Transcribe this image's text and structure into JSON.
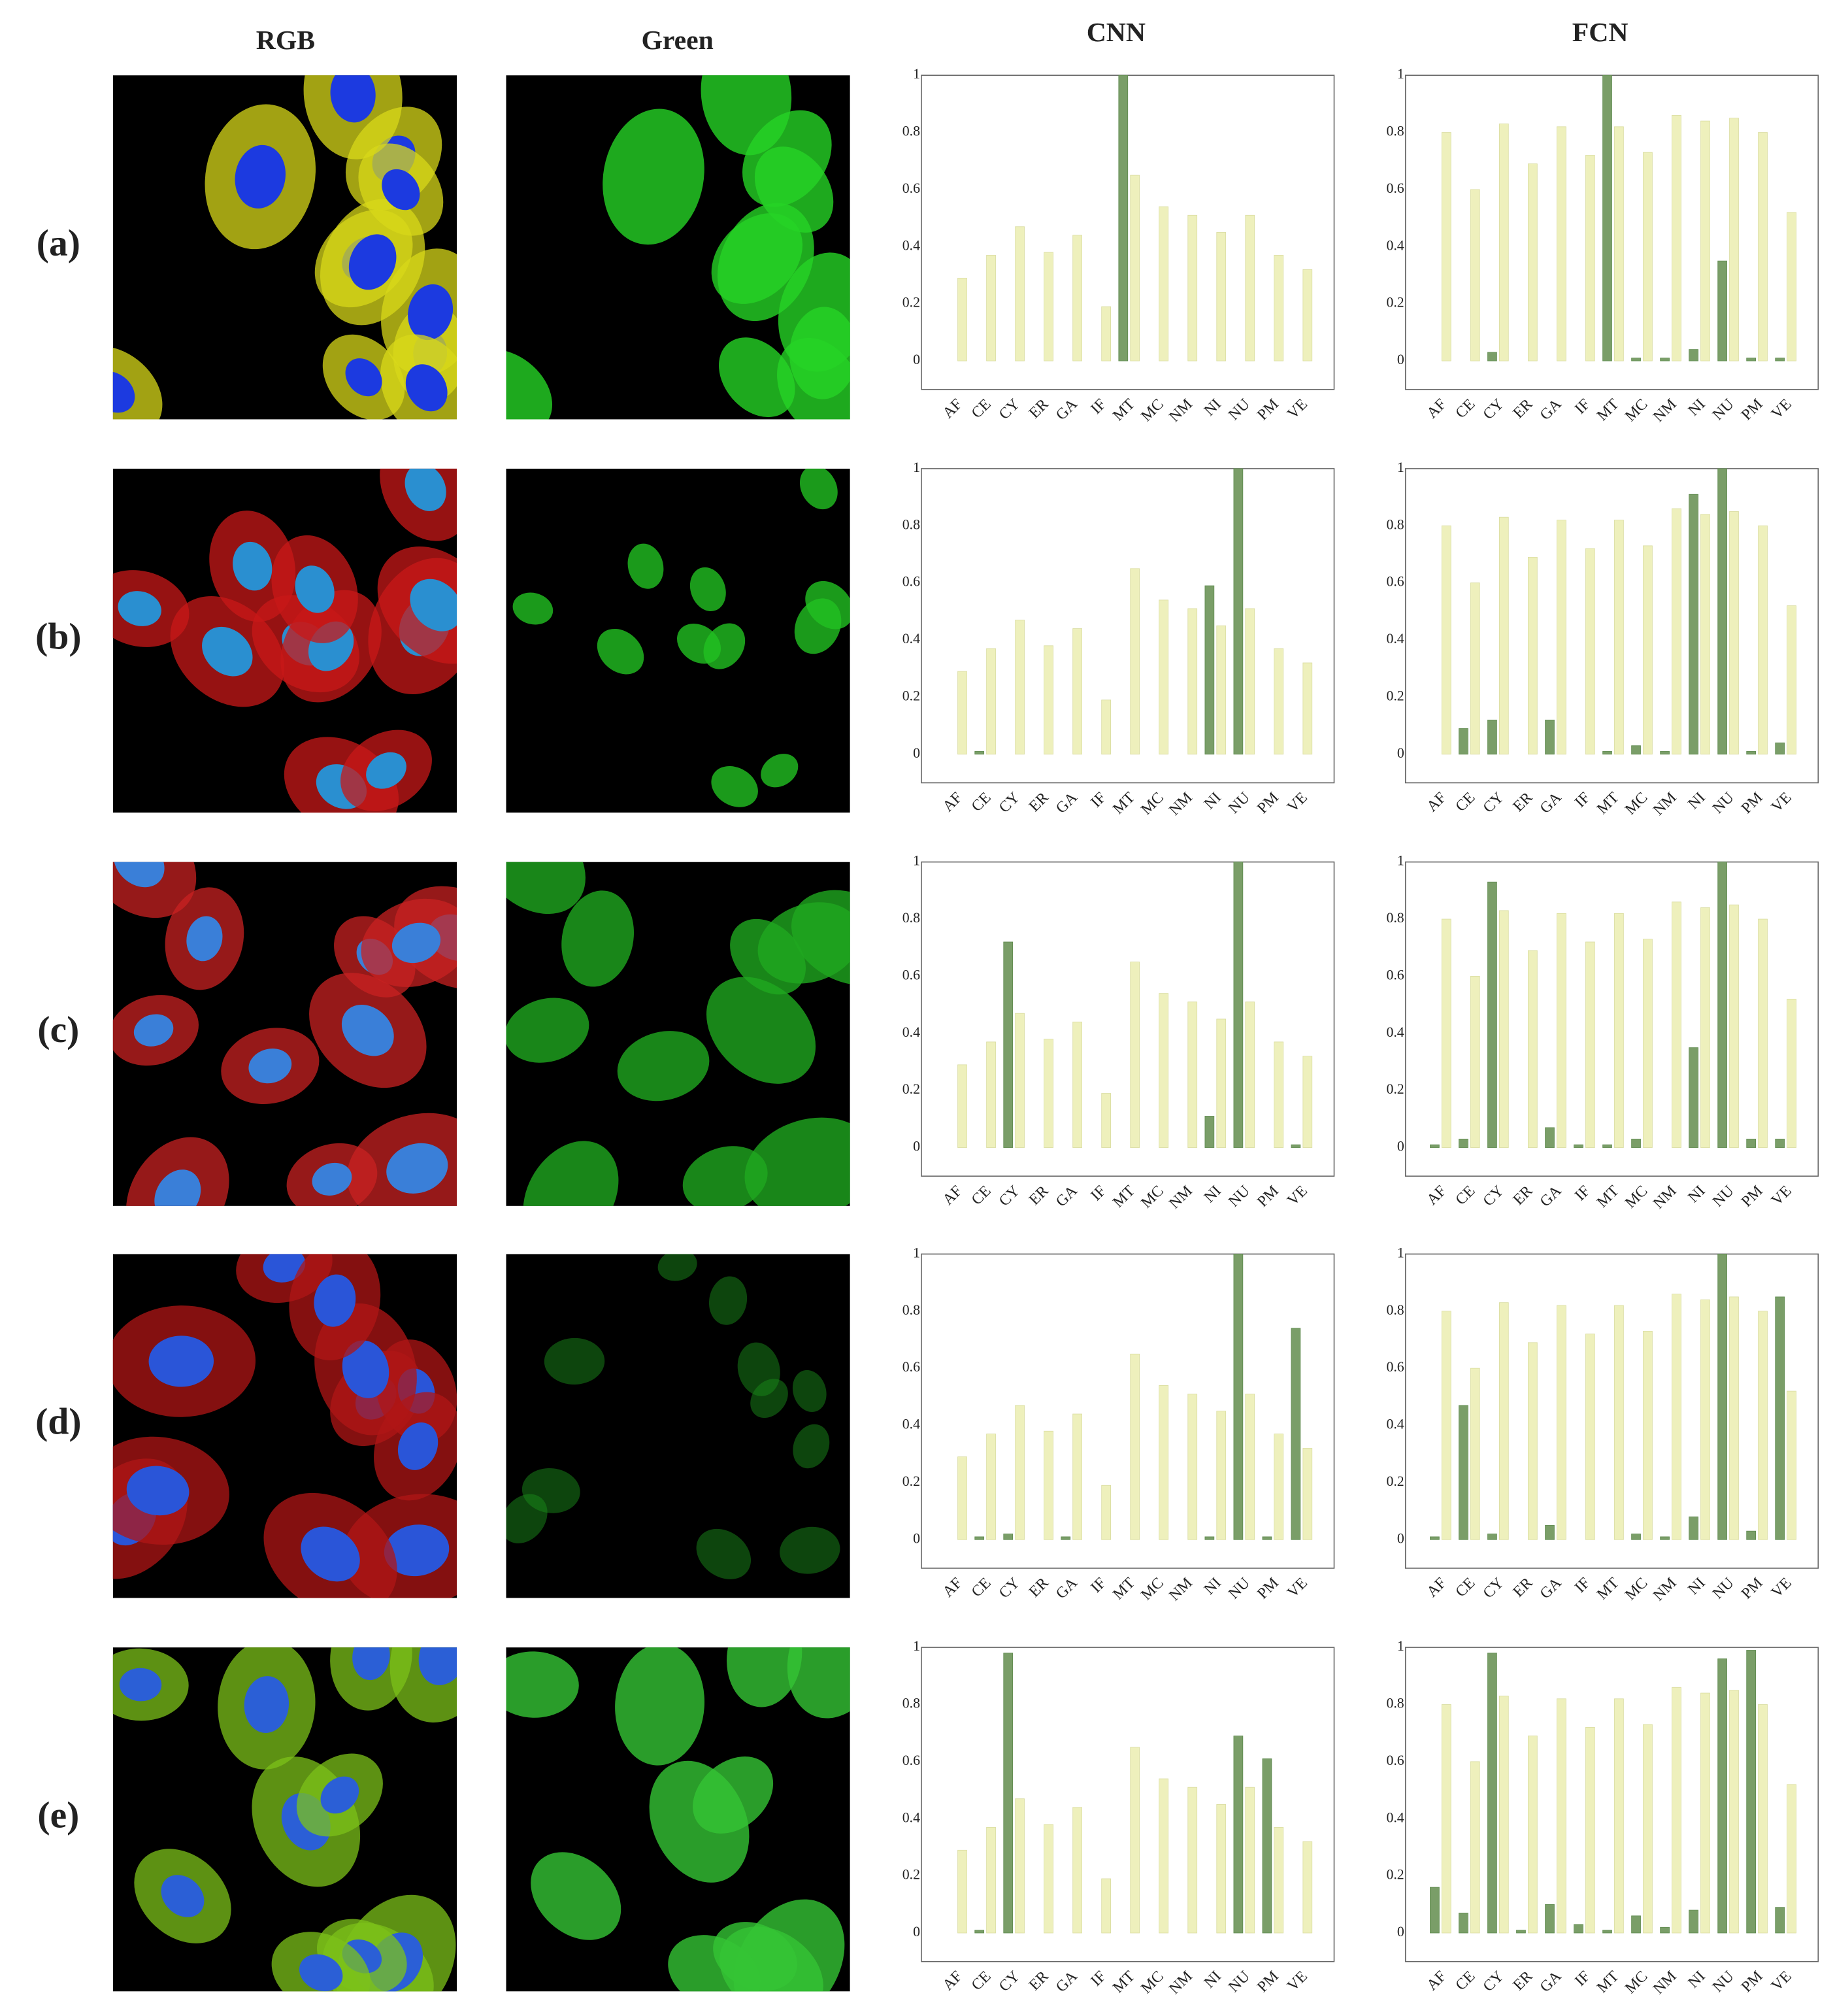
{
  "columns": [
    "RGB",
    "Green",
    "CNN",
    "FCN"
  ],
  "rows": [
    "(a)",
    "(b)",
    "(c)",
    "(d)",
    "(e)"
  ],
  "chart_data": [
    {
      "type": "bar",
      "categories": [
        "AF",
        "CE",
        "CY",
        "ER",
        "GA",
        "IF",
        "MT",
        "MC",
        "NM",
        "NI",
        "NU",
        "PM",
        "VE"
      ],
      "series": [
        {
          "color": "#7a9e68",
          "values": [
            0,
            0,
            0,
            0,
            0,
            0,
            1.0,
            0,
            0,
            0,
            0,
            0,
            0
          ]
        },
        {
          "color": "#eef0bc",
          "values": [
            0.29,
            0.37,
            0.47,
            0.38,
            0.44,
            0.19,
            0.65,
            0.54,
            0.51,
            0.45,
            0.51,
            0.37,
            0.32
          ]
        }
      ],
      "ylim": [
        -0.1,
        1
      ],
      "yticks": [
        0,
        0.2,
        0.4,
        0.6,
        0.8,
        1
      ],
      "grid": false,
      "category_colors": [
        "#333",
        "#333",
        "#333",
        "#333",
        "#333",
        "#333",
        "#2fc42f",
        "#333",
        "#333",
        "#333",
        "#333",
        "#333",
        "#333"
      ]
    },
    {
      "type": "bar",
      "categories": [
        "AF",
        "CE",
        "CY",
        "ER",
        "GA",
        "IF",
        "MT",
        "MC",
        "NM",
        "NI",
        "NU",
        "PM",
        "VE"
      ],
      "series": [
        {
          "color": "#7a9e68",
          "values": [
            0,
            0,
            0.03,
            0,
            0,
            0,
            1.0,
            0.01,
            0.01,
            0.04,
            0.35,
            0.01,
            0.01
          ]
        },
        {
          "color": "#eef0bc",
          "values": [
            0.8,
            0.6,
            0.83,
            0.69,
            0.82,
            0.72,
            0.82,
            0.73,
            0.86,
            0.84,
            0.85,
            0.8,
            0.52
          ]
        }
      ],
      "ylim": [
        -0.1,
        1
      ],
      "yticks": [
        0,
        0.2,
        0.4,
        0.6,
        0.8,
        1
      ],
      "grid": false,
      "category_colors": [
        "#333",
        "#333",
        "#333",
        "#333",
        "#333",
        "#333",
        "#2fc42f",
        "#333",
        "#333",
        "#333",
        "#333",
        "#333",
        "#333"
      ]
    },
    {
      "type": "bar",
      "categories": [
        "AF",
        "CE",
        "CY",
        "ER",
        "GA",
        "IF",
        "MT",
        "MC",
        "NM",
        "NI",
        "NU",
        "PM",
        "VE"
      ],
      "series": [
        {
          "color": "#7a9e68",
          "values": [
            0,
            0.01,
            0,
            0,
            0,
            0,
            0,
            0,
            0,
            0.59,
            1.0,
            0,
            0
          ]
        },
        {
          "color": "#eef0bc",
          "values": [
            0.29,
            0.37,
            0.47,
            0.38,
            0.44,
            0.19,
            0.65,
            0.54,
            0.51,
            0.45,
            0.51,
            0.37,
            0.32
          ]
        }
      ],
      "ylim": [
        -0.1,
        1
      ],
      "yticks": [
        0,
        0.2,
        0.4,
        0.6,
        0.8,
        1
      ],
      "grid": false,
      "category_colors": [
        "#333",
        "#333",
        "#333",
        "#333",
        "#333",
        "#333",
        "#333",
        "#333",
        "#333",
        "#2fc42f",
        "#2fc42f",
        "#333",
        "#333"
      ]
    },
    {
      "type": "bar",
      "categories": [
        "AF",
        "CE",
        "CY",
        "ER",
        "GA",
        "IF",
        "MT",
        "MC",
        "NM",
        "NI",
        "NU",
        "PM",
        "VE"
      ],
      "series": [
        {
          "color": "#7a9e68",
          "values": [
            0,
            0.09,
            0.12,
            0,
            0.12,
            0,
            0.01,
            0.03,
            0.01,
            0.91,
            1.0,
            0.01,
            0.04
          ]
        },
        {
          "color": "#eef0bc",
          "values": [
            0.8,
            0.6,
            0.83,
            0.69,
            0.82,
            0.72,
            0.82,
            0.73,
            0.86,
            0.84,
            0.85,
            0.8,
            0.52
          ]
        }
      ],
      "ylim": [
        -0.1,
        1
      ],
      "yticks": [
        0,
        0.2,
        0.4,
        0.6,
        0.8,
        1
      ],
      "grid": false,
      "category_colors": [
        "#333",
        "#333",
        "#333",
        "#333",
        "#333",
        "#333",
        "#333",
        "#333",
        "#333",
        "#2fc42f",
        "#2fc42f",
        "#333",
        "#333"
      ]
    },
    {
      "type": "bar",
      "categories": [
        "AF",
        "CE",
        "CY",
        "ER",
        "GA",
        "IF",
        "MT",
        "MC",
        "NM",
        "NI",
        "NU",
        "PM",
        "VE"
      ],
      "series": [
        {
          "color": "#7a9e68",
          "values": [
            0,
            0,
            0.72,
            0,
            0,
            0,
            0,
            0,
            0,
            0.11,
            1.0,
            0,
            0.01
          ]
        },
        {
          "color": "#eef0bc",
          "values": [
            0.29,
            0.37,
            0.47,
            0.38,
            0.44,
            0.19,
            0.65,
            0.54,
            0.51,
            0.45,
            0.51,
            0.37,
            0.32
          ]
        }
      ],
      "ylim": [
        -0.1,
        1
      ],
      "yticks": [
        0,
        0.2,
        0.4,
        0.6,
        0.8,
        1
      ],
      "grid": false,
      "category_colors": [
        "#333",
        "#333",
        "#2fc42f",
        "#333",
        "#333",
        "#333",
        "#333",
        "#333",
        "#333",
        "#333",
        "#2fc42f",
        "#333",
        "#333"
      ]
    },
    {
      "type": "bar",
      "categories": [
        "AF",
        "CE",
        "CY",
        "ER",
        "GA",
        "IF",
        "MT",
        "MC",
        "NM",
        "NI",
        "NU",
        "PM",
        "VE"
      ],
      "series": [
        {
          "color": "#7a9e68",
          "values": [
            0.01,
            0.03,
            0.93,
            0,
            0.07,
            0.01,
            0.01,
            0.03,
            0,
            0.35,
            1.0,
            0.03,
            0.03
          ]
        },
        {
          "color": "#eef0bc",
          "values": [
            0.8,
            0.6,
            0.83,
            0.69,
            0.82,
            0.72,
            0.82,
            0.73,
            0.86,
            0.84,
            0.85,
            0.8,
            0.52
          ]
        }
      ],
      "ylim": [
        -0.1,
        1
      ],
      "yticks": [
        0,
        0.2,
        0.4,
        0.6,
        0.8,
        1
      ],
      "grid": false,
      "category_colors": [
        "#333",
        "#333",
        "#2fc42f",
        "#333",
        "#333",
        "#333",
        "#333",
        "#333",
        "#333",
        "#333",
        "#2fc42f",
        "#333",
        "#333"
      ]
    },
    {
      "type": "bar",
      "categories": [
        "AF",
        "CE",
        "CY",
        "ER",
        "GA",
        "IF",
        "MT",
        "MC",
        "NM",
        "NI",
        "NU",
        "PM",
        "VE"
      ],
      "series": [
        {
          "color": "#7a9e68",
          "values": [
            0,
            0.01,
            0.02,
            0,
            0.01,
            0,
            0,
            0,
            0,
            0.01,
            1.0,
            0.01,
            0.74
          ]
        },
        {
          "color": "#eef0bc",
          "values": [
            0.29,
            0.37,
            0.47,
            0.38,
            0.44,
            0.19,
            0.65,
            0.54,
            0.51,
            0.45,
            0.51,
            0.37,
            0.32
          ]
        }
      ],
      "ylim": [
        -0.1,
        1
      ],
      "yticks": [
        0,
        0.2,
        0.4,
        0.6,
        0.8,
        1
      ],
      "grid": false,
      "category_colors": [
        "#333",
        "#333",
        "#333",
        "#333",
        "#333",
        "#333",
        "#333",
        "#333",
        "#333",
        "#333",
        "#2fc42f",
        "#333",
        "#2fc42f"
      ]
    },
    {
      "type": "bar",
      "categories": [
        "AF",
        "CE",
        "CY",
        "ER",
        "GA",
        "IF",
        "MT",
        "MC",
        "NM",
        "NI",
        "NU",
        "PM",
        "VE"
      ],
      "series": [
        {
          "color": "#7a9e68",
          "values": [
            0.01,
            0.47,
            0.02,
            0,
            0.05,
            0,
            0,
            0.02,
            0.01,
            0.08,
            1.0,
            0.03,
            0.85
          ]
        },
        {
          "color": "#eef0bc",
          "values": [
            0.8,
            0.6,
            0.83,
            0.69,
            0.82,
            0.72,
            0.82,
            0.73,
            0.86,
            0.84,
            0.85,
            0.8,
            0.52
          ]
        }
      ],
      "ylim": [
        -0.1,
        1
      ],
      "yticks": [
        0,
        0.2,
        0.4,
        0.6,
        0.8,
        1
      ],
      "grid": false,
      "category_colors": [
        "#333",
        "#333",
        "#333",
        "#333",
        "#333",
        "#333",
        "#333",
        "#333",
        "#333",
        "#333",
        "#2fc42f",
        "#333",
        "#2fc42f"
      ]
    },
    {
      "type": "bar",
      "categories": [
        "AF",
        "CE",
        "CY",
        "ER",
        "GA",
        "IF",
        "MT",
        "MC",
        "NM",
        "NI",
        "NU",
        "PM",
        "VE"
      ],
      "series": [
        {
          "color": "#7a9e68",
          "values": [
            0,
            0.01,
            0.98,
            0,
            0,
            0,
            0,
            0,
            0,
            0,
            0.69,
            0.61,
            0
          ]
        },
        {
          "color": "#eef0bc",
          "values": [
            0.29,
            0.37,
            0.47,
            0.38,
            0.44,
            0.19,
            0.65,
            0.54,
            0.51,
            0.45,
            0.51,
            0.37,
            0.32
          ]
        }
      ],
      "ylim": [
        -0.1,
        1
      ],
      "yticks": [
        0,
        0.2,
        0.4,
        0.6,
        0.8,
        1
      ],
      "grid": false,
      "category_colors": [
        "#2fc42f",
        "#333",
        "#2fc42f",
        "#333",
        "#333",
        "#333",
        "#333",
        "#333",
        "#333",
        "#333",
        "#2fc42f",
        "#2fc42f",
        "#333"
      ]
    },
    {
      "type": "bar",
      "categories": [
        "AF",
        "CE",
        "CY",
        "ER",
        "GA",
        "IF",
        "MT",
        "MC",
        "NM",
        "NI",
        "NU",
        "PM",
        "VE"
      ],
      "series": [
        {
          "color": "#7a9e68",
          "values": [
            0.16,
            0.07,
            0.98,
            0.01,
            0.1,
            0.03,
            0.01,
            0.06,
            0.02,
            0.08,
            0.96,
            0.99,
            0.09
          ]
        },
        {
          "color": "#eef0bc",
          "values": [
            0.8,
            0.6,
            0.83,
            0.69,
            0.82,
            0.72,
            0.82,
            0.73,
            0.86,
            0.84,
            0.85,
            0.8,
            0.52
          ]
        }
      ],
      "ylim": [
        -0.1,
        1
      ],
      "yticks": [
        0,
        0.2,
        0.4,
        0.6,
        0.8,
        1
      ],
      "grid": false,
      "category_colors": [
        "#2fc42f",
        "#333",
        "#2fc42f",
        "#333",
        "#333",
        "#333",
        "#333",
        "#333",
        "#333",
        "#333",
        "#2fc42f",
        "#2fc42f",
        "#333"
      ]
    }
  ]
}
